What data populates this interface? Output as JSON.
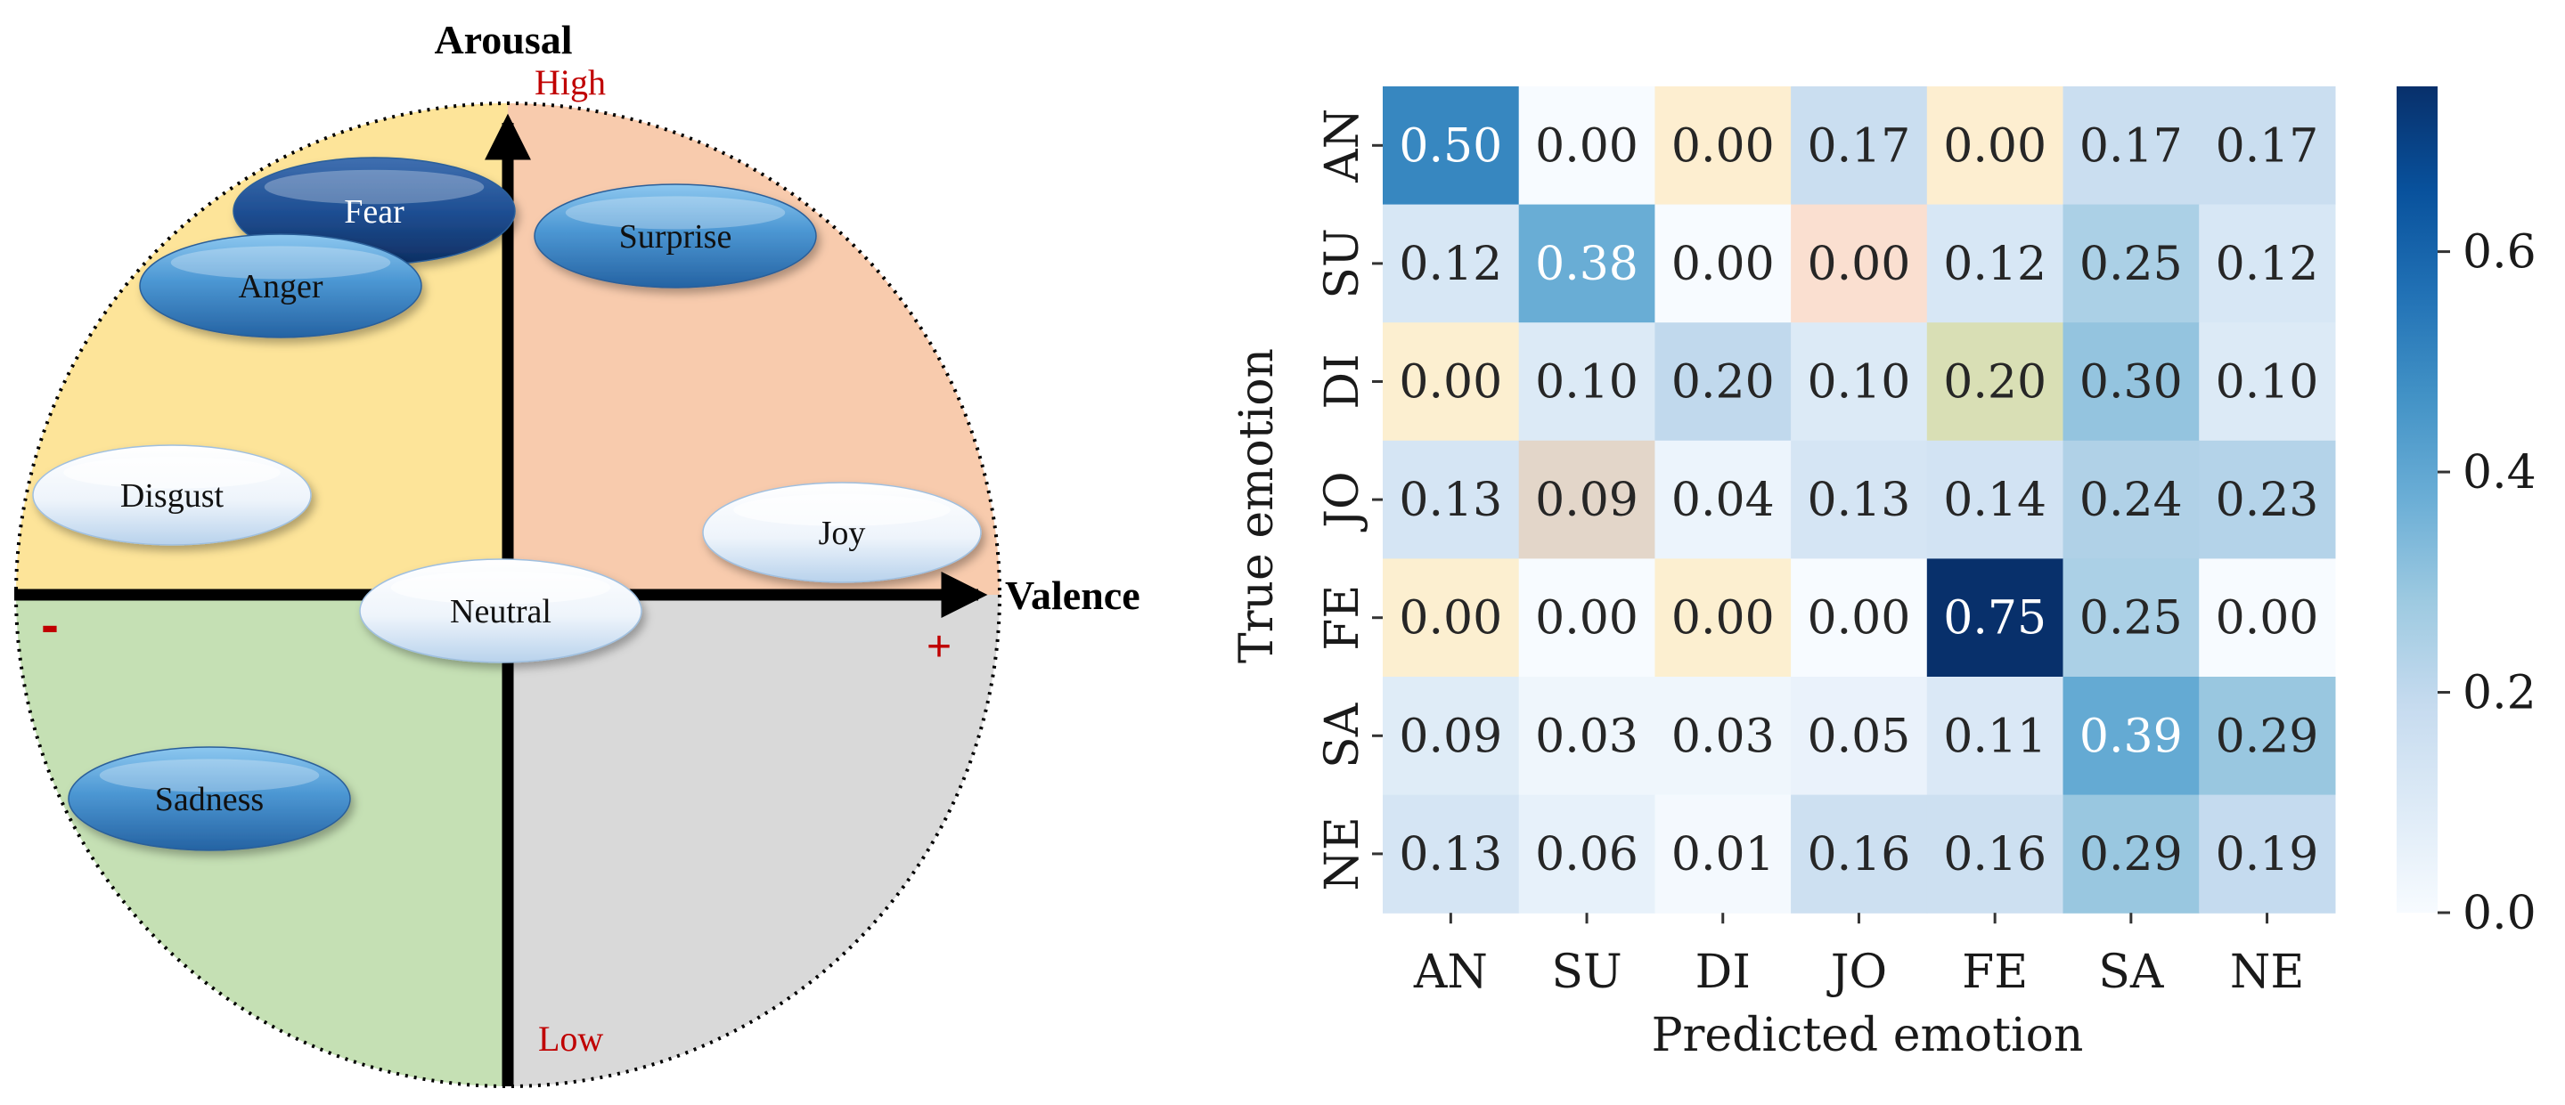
{
  "circumplex": {
    "y_axis_label": "Arousal",
    "x_axis_label": "Valence",
    "high_label": "High",
    "low_label": "Low",
    "negative_sign": "-",
    "positive_sign": "+",
    "quadrant_colors": {
      "high_negative": "#fde499",
      "high_positive": "#f8cbad",
      "low_negative": "#c5e0b4",
      "low_positive": "#d9d9d9"
    },
    "emotions": [
      {
        "name": "Fear",
        "shade": "dark"
      },
      {
        "name": "Surprise",
        "shade": "medium"
      },
      {
        "name": "Anger",
        "shade": "medium"
      },
      {
        "name": "Disgust",
        "shade": "light"
      },
      {
        "name": "Joy",
        "shade": "light"
      },
      {
        "name": "Neutral",
        "shade": "light"
      },
      {
        "name": "Sadness",
        "shade": "medium"
      }
    ]
  },
  "chart_data": {
    "type": "heatmap",
    "title": "",
    "xlabel": "Predicted emotion",
    "ylabel": "True emotion",
    "x_categories": [
      "AN",
      "SU",
      "DI",
      "JO",
      "FE",
      "SA",
      "NE"
    ],
    "y_categories": [
      "AN",
      "SU",
      "DI",
      "JO",
      "FE",
      "SA",
      "NE"
    ],
    "values": [
      [
        0.5,
        0.0,
        0.0,
        0.17,
        0.0,
        0.17,
        0.17
      ],
      [
        0.12,
        0.38,
        0.0,
        0.0,
        0.12,
        0.25,
        0.12
      ],
      [
        0.0,
        0.1,
        0.2,
        0.1,
        0.2,
        0.3,
        0.1
      ],
      [
        0.13,
        0.09,
        0.04,
        0.13,
        0.14,
        0.24,
        0.23
      ],
      [
        0.0,
        0.0,
        0.0,
        0.0,
        0.75,
        0.25,
        0.0
      ],
      [
        0.09,
        0.03,
        0.03,
        0.05,
        0.11,
        0.39,
        0.29
      ],
      [
        0.13,
        0.06,
        0.01,
        0.16,
        0.16,
        0.29,
        0.19
      ]
    ],
    "highlighted_cells": [
      {
        "row": 0,
        "col": 2,
        "color": "#fdeed0"
      },
      {
        "row": 0,
        "col": 4,
        "color": "#fdeed0"
      },
      {
        "row": 1,
        "col": 3,
        "color": "#fadfd0"
      },
      {
        "row": 2,
        "col": 0,
        "color": "#fcefd0"
      },
      {
        "row": 2,
        "col": 4,
        "color": "#d9dfb5"
      },
      {
        "row": 3,
        "col": 1,
        "color": "#e3d6c9"
      },
      {
        "row": 4,
        "col": 0,
        "color": "#fcefd0"
      },
      {
        "row": 4,
        "col": 2,
        "color": "#fcefd0"
      }
    ],
    "colorbar": {
      "min": 0.0,
      "max": 0.75,
      "ticks": [
        0.0,
        0.2,
        0.4,
        0.6
      ],
      "tick_labels": [
        "0.0",
        "0.2",
        "0.4",
        "0.6"
      ],
      "colormap": "Blues"
    },
    "value_format": "2 decimals",
    "annotation_light_text_color": "#ffffff",
    "annotation_dark_text_color": "#262626"
  }
}
